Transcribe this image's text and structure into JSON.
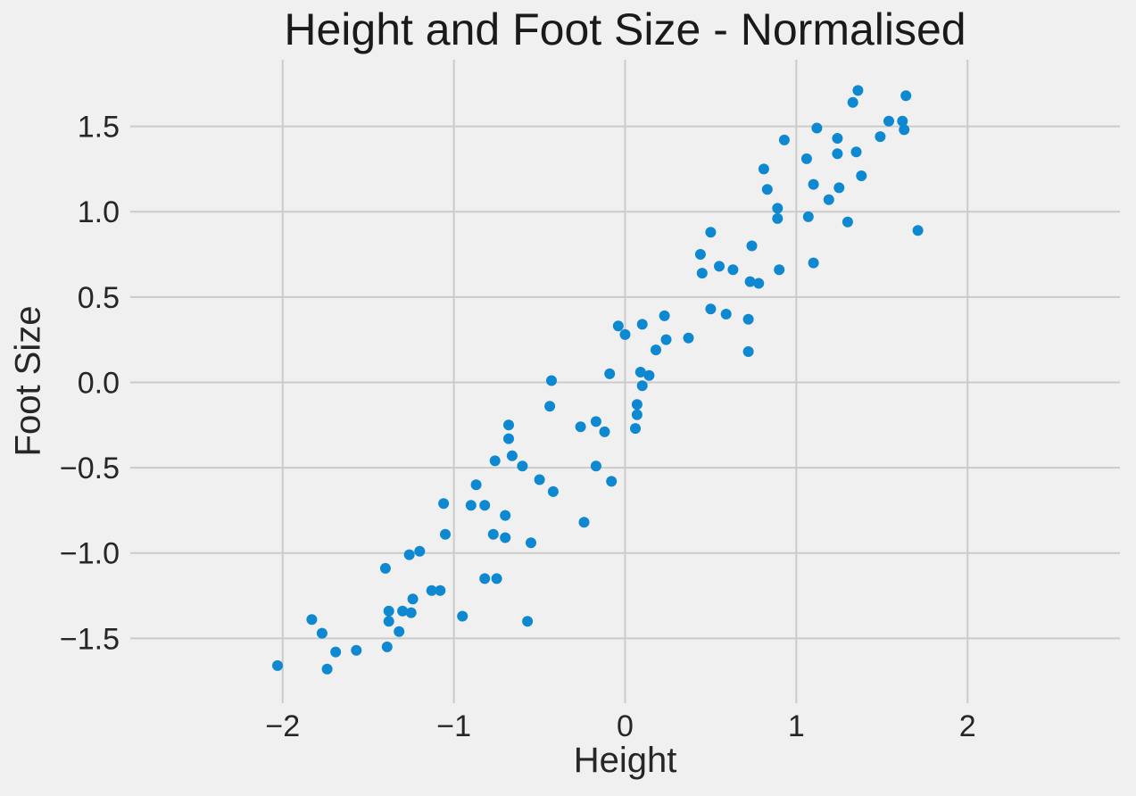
{
  "figure": {
    "background_color": "#f0f0f0",
    "grid_color": "#cbcbcb",
    "dot_color": "#0f88d2",
    "text_color": "#262626"
  },
  "chart_data": {
    "type": "scatter",
    "title": "Height and Foot Size - Normalised",
    "xlabel": "Height",
    "ylabel": "Foot Size",
    "grid": true,
    "legend": false,
    "xlim": [
      -2.89,
      2.89
    ],
    "ylim": [
      -1.88,
      1.89
    ],
    "x_ticks": [
      -2,
      -1,
      0,
      1,
      2
    ],
    "x_tick_labels": [
      "−2",
      "−1",
      "0",
      "1",
      "2"
    ],
    "y_ticks": [
      1.5,
      1.0,
      0.5,
      0.0,
      -0.5,
      -1.0,
      -1.5
    ],
    "y_tick_labels": [
      "1.5",
      "1.0",
      "0.5",
      "0.0",
      "−0.5",
      "−1.0",
      "−1.5"
    ],
    "series_name": "height-vs-foot-size",
    "points": [
      [
        -2.03,
        -1.66
      ],
      [
        -1.83,
        -1.39
      ],
      [
        -1.77,
        -1.47
      ],
      [
        -1.74,
        -1.68
      ],
      [
        -1.69,
        -1.58
      ],
      [
        -1.57,
        -1.57
      ],
      [
        -1.4,
        -1.09
      ],
      [
        -1.39,
        -1.55
      ],
      [
        -1.38,
        -1.34
      ],
      [
        -1.38,
        -1.4
      ],
      [
        -1.32,
        -1.46
      ],
      [
        -1.3,
        -1.34
      ],
      [
        -1.25,
        -1.35
      ],
      [
        -1.26,
        -1.01
      ],
      [
        -1.24,
        -1.27
      ],
      [
        -1.2,
        -0.99
      ],
      [
        -1.13,
        -1.22
      ],
      [
        -1.08,
        -1.22
      ],
      [
        -1.06,
        -0.71
      ],
      [
        -1.05,
        -0.89
      ],
      [
        -0.95,
        -1.37
      ],
      [
        -0.9,
        -0.72
      ],
      [
        -0.82,
        -1.15
      ],
      [
        -0.75,
        -1.15
      ],
      [
        -0.82,
        -0.72
      ],
      [
        -0.87,
        -0.6
      ],
      [
        -0.77,
        -0.89
      ],
      [
        -0.76,
        -0.46
      ],
      [
        -0.7,
        -0.91
      ],
      [
        -0.7,
        -0.78
      ],
      [
        -0.68,
        -0.25
      ],
      [
        -0.68,
        -0.33
      ],
      [
        -0.66,
        -0.43
      ],
      [
        -0.6,
        -0.49
      ],
      [
        -0.57,
        -1.4
      ],
      [
        -0.55,
        -0.94
      ],
      [
        -0.5,
        -0.57
      ],
      [
        -0.44,
        -0.14
      ],
      [
        -0.43,
        0.01
      ],
      [
        -0.42,
        -0.64
      ],
      [
        -0.26,
        -0.26
      ],
      [
        -0.24,
        -0.82
      ],
      [
        -0.17,
        -0.23
      ],
      [
        -0.17,
        -0.49
      ],
      [
        -0.12,
        -0.29
      ],
      [
        -0.08,
        -0.58
      ],
      [
        -0.09,
        0.05
      ],
      [
        -0.04,
        0.33
      ],
      [
        0.0,
        0.28
      ],
      [
        0.06,
        -0.27
      ],
      [
        0.07,
        -0.13
      ],
      [
        0.07,
        -0.19
      ],
      [
        0.09,
        0.06
      ],
      [
        0.1,
        0.34
      ],
      [
        0.1,
        -0.02
      ],
      [
        0.14,
        0.04
      ],
      [
        0.18,
        0.19
      ],
      [
        0.23,
        0.39
      ],
      [
        0.24,
        0.25
      ],
      [
        0.37,
        0.26
      ],
      [
        0.44,
        0.75
      ],
      [
        0.45,
        0.64
      ],
      [
        0.5,
        0.43
      ],
      [
        0.5,
        0.88
      ],
      [
        0.55,
        0.68
      ],
      [
        0.59,
        0.4
      ],
      [
        0.63,
        0.66
      ],
      [
        0.73,
        0.59
      ],
      [
        0.78,
        0.58
      ],
      [
        0.72,
        0.37
      ],
      [
        0.72,
        0.18
      ],
      [
        0.74,
        0.8
      ],
      [
        0.81,
        1.25
      ],
      [
        0.83,
        1.13
      ],
      [
        0.89,
        1.02
      ],
      [
        0.89,
        0.96
      ],
      [
        0.9,
        0.66
      ],
      [
        0.93,
        1.42
      ],
      [
        1.06,
        1.31
      ],
      [
        1.07,
        0.97
      ],
      [
        1.1,
        0.7
      ],
      [
        1.1,
        1.16
      ],
      [
        1.12,
        1.49
      ],
      [
        1.19,
        1.07
      ],
      [
        1.24,
        1.43
      ],
      [
        1.24,
        1.34
      ],
      [
        1.25,
        1.14
      ],
      [
        1.3,
        0.94
      ],
      [
        1.33,
        1.64
      ],
      [
        1.36,
        1.71
      ],
      [
        1.35,
        1.35
      ],
      [
        1.38,
        1.21
      ],
      [
        1.49,
        1.44
      ],
      [
        1.54,
        1.53
      ],
      [
        1.62,
        1.53
      ],
      [
        1.63,
        1.48
      ],
      [
        1.64,
        1.68
      ],
      [
        1.71,
        0.89
      ]
    ]
  }
}
